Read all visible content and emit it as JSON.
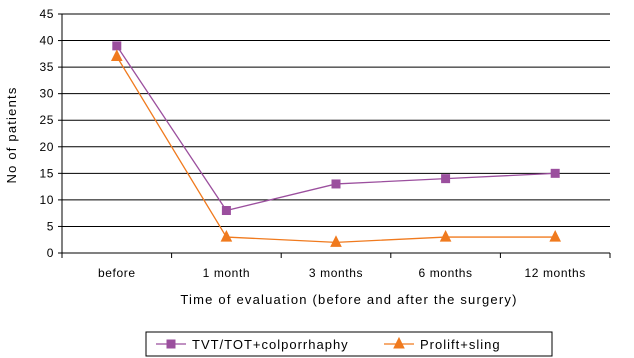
{
  "chart_data": {
    "type": "line",
    "categories": [
      "before",
      "1 month",
      "3 months",
      "6 months",
      "12 months"
    ],
    "series": [
      {
        "name": "TVT/TOT+colporrhaphy",
        "values": [
          39,
          8,
          13,
          14,
          15
        ],
        "color": "#9b4f9e",
        "marker": "square"
      },
      {
        "name": "Prolift+sling",
        "values": [
          37,
          3,
          2,
          3,
          3
        ],
        "color": "#f07a1e",
        "marker": "triangle"
      }
    ],
    "xlabel": "Time of evaluation (before and after the surgery)",
    "ylabel": "No of patients",
    "ylim": [
      0,
      45
    ],
    "yticks": [
      0,
      5,
      10,
      15,
      20,
      25,
      30,
      35,
      40,
      45
    ],
    "grid": true,
    "legend": "bottom"
  }
}
